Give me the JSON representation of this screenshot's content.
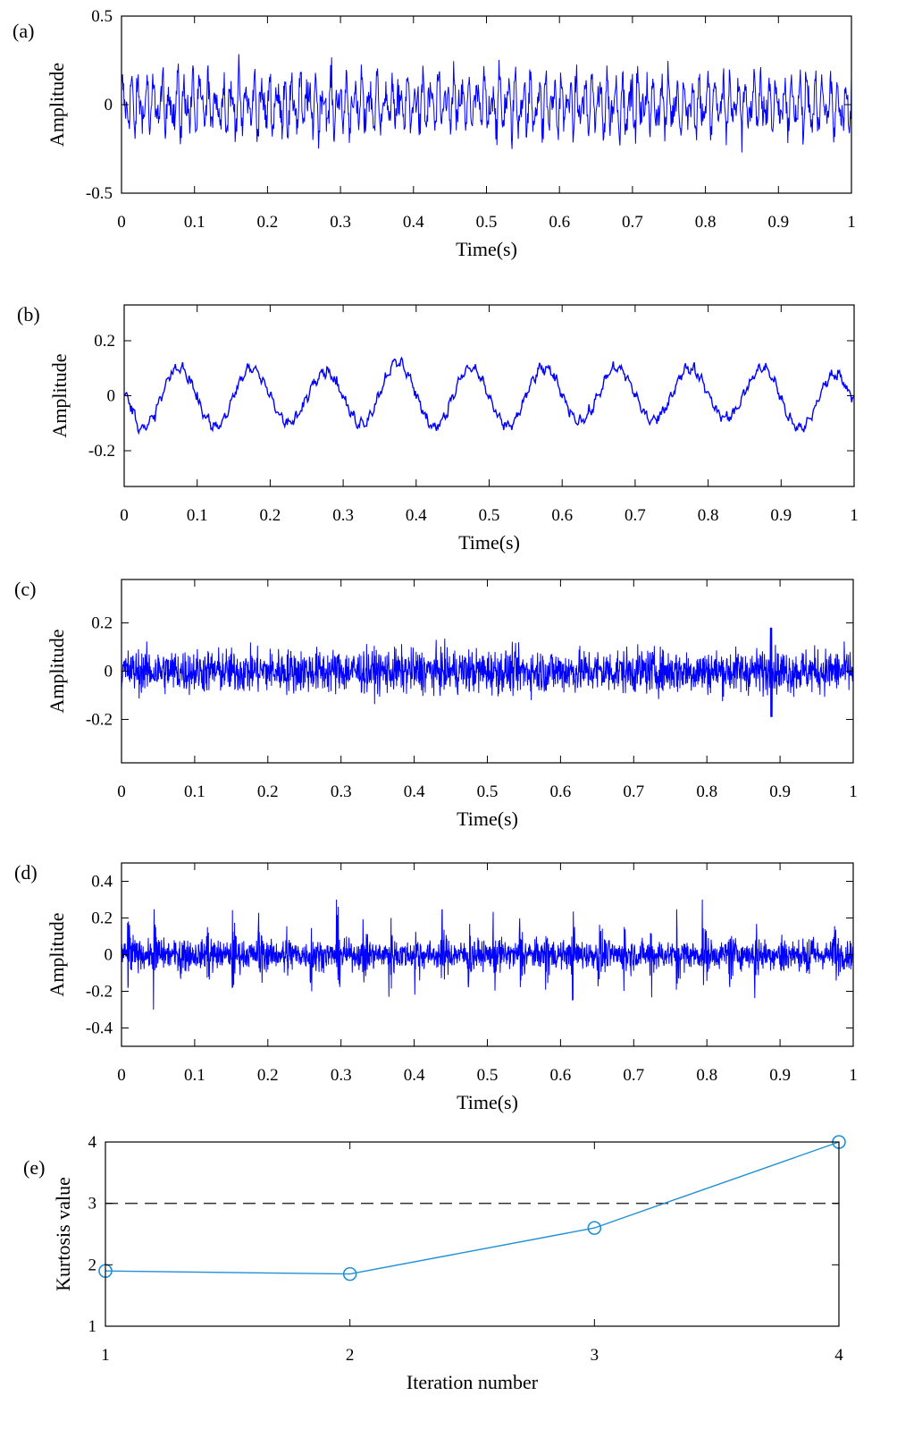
{
  "figure": {
    "chart_data": [
      {
        "panel": "(a)",
        "type": "line",
        "xlabel": "Time(s)",
        "ylabel": "Amplitude",
        "xlim": [
          0,
          1
        ],
        "ylim": [
          -0.5,
          0.5
        ],
        "xticks": [
          "0",
          "0.1",
          "0.2",
          "0.3",
          "0.4",
          "0.5",
          "0.6",
          "0.7",
          "0.8",
          "0.9",
          "1"
        ],
        "yticks": [
          "-0.5",
          "0",
          "0.5"
        ],
        "ytick_values": [
          -0.5,
          0,
          0.5
        ],
        "color": "#0000ff",
        "series": [
          {
            "description": "dense vibration signal",
            "peak_envelope": [
              0.3,
              0.3,
              0.32,
              0.3,
              0.3,
              0.3,
              0.28,
              0.3,
              0.3,
              0.3,
              0.3
            ],
            "trough_envelope": [
              -0.3,
              -0.32,
              -0.3,
              -0.3,
              -0.3,
              -0.32,
              -0.3,
              -0.3,
              -0.3,
              -0.3,
              -0.3
            ]
          }
        ]
      },
      {
        "panel": "(b)",
        "type": "line",
        "xlabel": "Time(s)",
        "ylabel": "Amplitude",
        "xlim": [
          0,
          1
        ],
        "ylim": [
          -0.33,
          0.33
        ],
        "xticks": [
          "0",
          "0.1",
          "0.2",
          "0.3",
          "0.4",
          "0.5",
          "0.6",
          "0.7",
          "0.8",
          "0.9",
          "1"
        ],
        "yticks": [
          "-0.2",
          "0",
          "0.2"
        ],
        "ytick_values": [
          -0.2,
          0,
          0.2
        ],
        "color": "#0000ff",
        "series": [
          {
            "description": "low-frequency oscillation with small ripple",
            "x": [
              0,
              0.025,
              0.075,
              0.125,
              0.175,
              0.225,
              0.275,
              0.325,
              0.375,
              0.425,
              0.475,
              0.525,
              0.575,
              0.625,
              0.675,
              0.725,
              0.775,
              0.825,
              0.875,
              0.925,
              0.975,
              1.0
            ],
            "y": [
              0,
              -0.12,
              0.1,
              -0.11,
              0.1,
              -0.1,
              0.09,
              -0.1,
              0.12,
              -0.11,
              0.1,
              -0.11,
              0.1,
              -0.09,
              0.1,
              -0.09,
              0.1,
              -0.08,
              0.1,
              -0.12,
              0.08,
              0
            ]
          }
        ]
      },
      {
        "panel": "(c)",
        "type": "line",
        "xlabel": "Time(s)",
        "ylabel": "Amplitude",
        "xlim": [
          0,
          1
        ],
        "ylim": [
          -0.38,
          0.38
        ],
        "xticks": [
          "0",
          "0.1",
          "0.2",
          "0.3",
          "0.4",
          "0.5",
          "0.6",
          "0.7",
          "0.8",
          "0.9",
          "1"
        ],
        "yticks": [
          "-0.2",
          "0",
          "0.2"
        ],
        "ytick_values": [
          -0.2,
          0,
          0.2
        ],
        "color": "#0000ff",
        "series": [
          {
            "description": "broadband noise with one impulse",
            "noise_amplitude": 0.1,
            "impulse": {
              "x": 0.888,
              "max": 0.18,
              "min": -0.19
            }
          }
        ]
      },
      {
        "panel": "(d)",
        "type": "line",
        "xlabel": "Time(s)",
        "ylabel": "Amplitude",
        "xlim": [
          0,
          1
        ],
        "ylim": [
          -0.5,
          0.5
        ],
        "xticks": [
          "0",
          "0.1",
          "0.2",
          "0.3",
          "0.4",
          "0.5",
          "0.6",
          "0.7",
          "0.8",
          "0.9",
          "1"
        ],
        "yticks": [
          "-0.4",
          "-0.2",
          "0",
          "0.2",
          "0.4"
        ],
        "ytick_values": [
          -0.4,
          -0.2,
          0,
          0.2,
          0.4
        ],
        "color": "#0000ff",
        "series": [
          {
            "description": "periodic impulses in noise",
            "impulse_period": 0.0357,
            "first_impulse": 0.008,
            "impulse_amplitude": 0.25,
            "noise_amplitude": 0.08
          }
        ]
      },
      {
        "panel": "(e)",
        "type": "line",
        "xlabel": "Iteration number",
        "ylabel": "Kurtosis value",
        "xlim": [
          1,
          4
        ],
        "ylim": [
          1,
          4
        ],
        "xticks": [
          "1",
          "2",
          "3",
          "4"
        ],
        "xtick_values": [
          1,
          2,
          3,
          4
        ],
        "yticks": [
          "1",
          "2",
          "3",
          "4"
        ],
        "ytick_values": [
          1,
          2,
          3,
          4
        ],
        "color": "#1f8fd6",
        "marker": "open circle",
        "series": [
          {
            "x": [
              1,
              2,
              3,
              4
            ],
            "values": [
              1.9,
              1.85,
              2.6,
              4.0
            ]
          }
        ],
        "reference_line": {
          "y": 3,
          "style": "dashed",
          "color": "#333333"
        }
      }
    ]
  }
}
